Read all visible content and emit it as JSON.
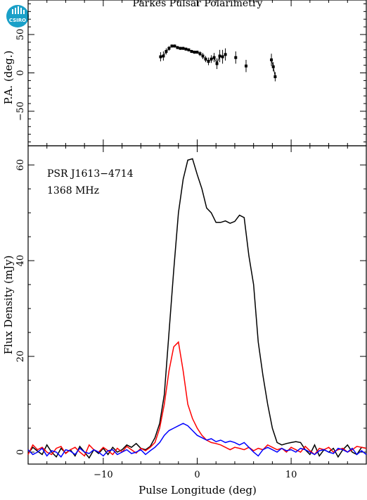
{
  "header": {
    "title": "Parkes Pulsar Polarimetry",
    "logo_text": "CSIRO"
  },
  "chart_data": [
    {
      "type": "scatter",
      "panel": "position-angle",
      "ylabel": "P.A. (deg.)",
      "xlim": [
        -18,
        18
      ],
      "ylim": [
        -95,
        95
      ],
      "yticks": [
        -50,
        0,
        50
      ],
      "points": [
        {
          "x": -3.9,
          "y": 21,
          "err": 6
        },
        {
          "x": -3.6,
          "y": 22,
          "err": 6
        },
        {
          "x": -3.3,
          "y": 28,
          "err": 4
        },
        {
          "x": -3.0,
          "y": 32,
          "err": 3
        },
        {
          "x": -2.7,
          "y": 35,
          "err": 2
        },
        {
          "x": -2.4,
          "y": 35,
          "err": 2
        },
        {
          "x": -2.1,
          "y": 33,
          "err": 2
        },
        {
          "x": -1.8,
          "y": 32,
          "err": 2
        },
        {
          "x": -1.5,
          "y": 32,
          "err": 2
        },
        {
          "x": -1.2,
          "y": 31,
          "err": 2
        },
        {
          "x": -0.9,
          "y": 30,
          "err": 2
        },
        {
          "x": -0.6,
          "y": 28,
          "err": 2
        },
        {
          "x": -0.3,
          "y": 27,
          "err": 2
        },
        {
          "x": 0.0,
          "y": 27,
          "err": 2
        },
        {
          "x": 0.3,
          "y": 25,
          "err": 3
        },
        {
          "x": 0.6,
          "y": 22,
          "err": 4
        },
        {
          "x": 0.9,
          "y": 18,
          "err": 4
        },
        {
          "x": 1.2,
          "y": 15,
          "err": 5
        },
        {
          "x": 1.5,
          "y": 18,
          "err": 5
        },
        {
          "x": 1.8,
          "y": 20,
          "err": 6
        },
        {
          "x": 2.1,
          "y": 12,
          "err": 7
        },
        {
          "x": 2.4,
          "y": 22,
          "err": 8
        },
        {
          "x": 2.7,
          "y": 21,
          "err": 9
        },
        {
          "x": 3.0,
          "y": 24,
          "err": 8
        },
        {
          "x": 4.1,
          "y": 20,
          "err": 8
        },
        {
          "x": 5.2,
          "y": 9,
          "err": 8
        },
        {
          "x": 7.9,
          "y": 17,
          "err": 8
        },
        {
          "x": 8.1,
          "y": 8,
          "err": 6
        },
        {
          "x": 8.3,
          "y": -5,
          "err": 6
        }
      ]
    },
    {
      "type": "line",
      "panel": "flux-density",
      "xlabel": "Pulse Longitude (deg)",
      "ylabel": "Flux Density (mJy)",
      "xlim": [
        -18,
        18
      ],
      "ylim": [
        -2.5,
        64
      ],
      "xticks": [
        -10,
        0,
        10
      ],
      "yticks": [
        0,
        20,
        40,
        60
      ],
      "annotations": [
        "PSR J1613−4714",
        "1368 MHz"
      ],
      "colors": {
        "total": "#000000",
        "linear": "#ff0000",
        "circular": "#0000ff"
      },
      "x": [
        -18,
        -17.5,
        -17,
        -16.5,
        -16,
        -15.5,
        -15,
        -14.5,
        -14,
        -13.5,
        -13,
        -12.5,
        -12,
        -11.5,
        -11,
        -10.5,
        -10,
        -9.5,
        -9,
        -8.5,
        -8,
        -7.5,
        -7,
        -6.5,
        -6,
        -5.5,
        -5,
        -4.5,
        -4,
        -3.5,
        -3,
        -2.5,
        -2,
        -1.5,
        -1,
        -0.5,
        0,
        0.5,
        1,
        1.5,
        2,
        2.5,
        3,
        3.5,
        4,
        4.5,
        5,
        5.5,
        6,
        6.5,
        7,
        7.5,
        8,
        8.5,
        9,
        9.5,
        10,
        10.5,
        11,
        11.5,
        12,
        12.5,
        13,
        13.5,
        14,
        14.5,
        15,
        15.5,
        16,
        16.5,
        17,
        17.5,
        18
      ],
      "series": [
        {
          "values": [
            -0.3,
            1.0,
            0.2,
            -0.5,
            1.5,
            0.0,
            -1.0,
            0.8,
            -0.2,
            0.5,
            -0.8,
            1.2,
            0.0,
            -1.2,
            0.5,
            -0.3,
            0.8,
            -0.5,
            1.0,
            0.0,
            0.5,
            1.5,
            1.0,
            1.8,
            0.8,
            0.5,
            1.2,
            3.0,
            6.0,
            12.0,
            25.0,
            38.0,
            50.0,
            57.0,
            61.0,
            61.3,
            58.0,
            55.0,
            51.0,
            50.0,
            48.0,
            48.0,
            48.3,
            47.8,
            48.2,
            49.5,
            49.0,
            41.0,
            35.0,
            23.0,
            16.0,
            10.0,
            5.0,
            2.0,
            1.5,
            1.8,
            2.0,
            2.2,
            2.0,
            0.5,
            -0.5,
            1.5,
            -0.8,
            0.5,
            0.0,
            0.8,
            -1.0,
            0.5,
            1.5,
            0.0,
            -0.5,
            1.0,
            0.8
          ]
        },
        {
          "values": [
            -0.5,
            1.5,
            0.5,
            1.0,
            0.0,
            -0.5,
            0.8,
            1.2,
            -0.3,
            0.5,
            1.0,
            0.0,
            -0.8,
            1.5,
            0.5,
            0.0,
            1.0,
            0.3,
            -0.5,
            0.8,
            0.0,
            1.2,
            0.5,
            -0.2,
            0.8,
            0.3,
            1.0,
            2.0,
            5.0,
            10.0,
            17.0,
            22.0,
            23.0,
            17.0,
            10.0,
            7.0,
            5.0,
            3.5,
            2.5,
            2.0,
            1.8,
            1.5,
            1.0,
            0.5,
            1.0,
            0.8,
            0.5,
            1.0,
            0.3,
            0.8,
            0.5,
            1.5,
            1.0,
            0.5,
            0.8,
            0.0,
            1.0,
            0.5,
            0.0,
            1.2,
            0.3,
            -0.5,
            0.8,
            0.5,
            1.0,
            0.0,
            0.5,
            0.8,
            0.0,
            0.5,
            1.2,
            1.0,
            0.8
          ]
        },
        {
          "values": [
            0.5,
            -0.5,
            0.0,
            0.8,
            -0.8,
            0.3,
            0.0,
            -1.0,
            0.5,
            0.2,
            -0.5,
            0.8,
            0.0,
            -0.3,
            0.5,
            0.0,
            -0.8,
            0.3,
            0.5,
            -0.5,
            0.0,
            0.5,
            -0.3,
            0.0,
            0.5,
            -0.5,
            0.3,
            1.0,
            2.0,
            3.5,
            4.5,
            5.0,
            5.5,
            6.0,
            5.5,
            4.5,
            3.5,
            3.0,
            2.5,
            2.8,
            2.2,
            2.5,
            2.0,
            2.3,
            2.0,
            1.5,
            2.0,
            1.0,
            0.0,
            -0.8,
            0.5,
            1.0,
            0.5,
            0.0,
            0.8,
            0.3,
            0.5,
            0.0,
            0.8,
            0.5,
            0.0,
            -0.5,
            0.3,
            0.5,
            0.0,
            -0.3,
            0.8,
            0.5,
            0.0,
            0.8,
            -0.5,
            0.3,
            -0.5
          ]
        }
      ]
    }
  ]
}
